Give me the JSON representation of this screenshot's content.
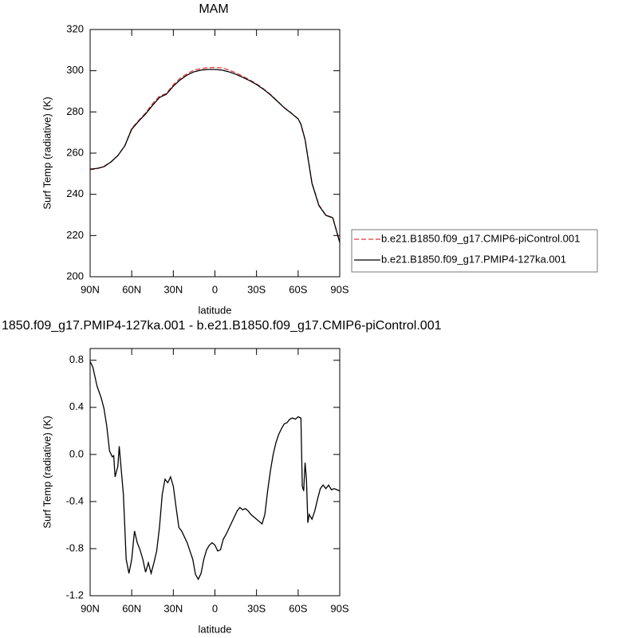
{
  "chart_data": [
    {
      "type": "line",
      "title": "MAM",
      "xlabel": "latitude",
      "ylabel": "Surf Temp (radiative) (K)",
      "x": [
        90,
        85,
        80,
        75,
        70,
        65,
        60,
        55,
        50,
        45,
        40,
        35,
        30,
        25,
        20,
        15,
        10,
        5,
        0,
        -5,
        -10,
        -15,
        -20,
        -25,
        -30,
        -35,
        -40,
        -45,
        -50,
        -55,
        -60,
        -62,
        -65,
        -70,
        -75,
        -80,
        -85,
        -90
      ],
      "series": [
        {
          "name": "b.e21.B1850.f09_g17.CMIP6-piControl.001",
          "color": "#e8383a",
          "dash": "dashed",
          "values": [
            252.0,
            252.4,
            253.6,
            255.7,
            258.8,
            263.6,
            272.0,
            275.8,
            279.5,
            284.0,
            287.6,
            289.0,
            293.2,
            296.4,
            298.6,
            300.3,
            301.0,
            301.5,
            301.6,
            301.3,
            300.4,
            299.0,
            297.3,
            295.6,
            293.6,
            291.2,
            288.5,
            285.3,
            282.1,
            279.5,
            276.7,
            274.1,
            266.6,
            245.5,
            234.8,
            229.9,
            228.7,
            216.8
          ]
        },
        {
          "name": "b.e21.B1850.f09_g17.PMIP4-127ka.001",
          "color": "#000000",
          "dash": "solid",
          "values": [
            252.2,
            252.6,
            253.4,
            255.7,
            258.8,
            263.5,
            271.6,
            275.5,
            279.0,
            283.2,
            287.0,
            288.6,
            292.5,
            295.6,
            297.9,
            299.5,
            300.3,
            300.6,
            300.6,
            300.3,
            299.5,
            298.3,
            296.8,
            295.2,
            293.3,
            291.0,
            288.3,
            285.2,
            282.0,
            279.4,
            276.6,
            274.0,
            266.6,
            245.3,
            234.5,
            229.8,
            228.6,
            216.6
          ]
        }
      ],
      "xlim": [
        90,
        -90
      ],
      "ylim": [
        200,
        320
      ],
      "xticks": [
        {
          "value": 90,
          "label": "90N"
        },
        {
          "value": 60,
          "label": "60N"
        },
        {
          "value": 30,
          "label": "30N"
        },
        0,
        {
          "value": -30,
          "label": "30S"
        },
        {
          "value": -60,
          "label": "60S"
        },
        {
          "value": -90,
          "label": "90S"
        }
      ],
      "yticks": [
        200,
        220,
        240,
        260,
        280,
        300,
        320
      ],
      "legend": "right"
    },
    {
      "type": "line",
      "title": "1850.f09_g17.PMIP4-127ka.001 - b.e21.B1850.f09_g17.CMIP6-piControl.001",
      "xlabel": "latitude",
      "ylabel": "Surf Temp (radiative) (K)",
      "x": [
        90,
        88,
        85,
        82,
        80,
        78,
        76,
        74,
        73,
        72,
        70,
        69,
        68,
        66,
        64,
        62,
        60,
        58,
        56,
        54,
        52,
        50,
        48,
        46,
        44,
        42,
        40,
        38,
        36,
        34,
        32,
        30,
        28,
        26,
        24,
        22,
        20,
        18,
        16,
        14,
        12,
        10,
        8,
        6,
        4,
        2,
        0,
        -2,
        -4,
        -6,
        -8,
        -10,
        -12,
        -14,
        -16,
        -18,
        -20,
        -22,
        -24,
        -26,
        -28,
        -30,
        -32,
        -34,
        -36,
        -38,
        -40,
        -42,
        -44,
        -46,
        -48,
        -50,
        -52,
        -54,
        -56,
        -58,
        -60,
        -62,
        -63,
        -64,
        -65,
        -66,
        -67,
        -68,
        -70,
        -72,
        -74,
        -76,
        -78,
        -80,
        -82,
        -84,
        -86,
        -88,
        -90
      ],
      "series": [
        {
          "color": "#000000",
          "dash": "solid",
          "values": [
            0.79,
            0.74,
            0.58,
            0.48,
            0.39,
            0.24,
            0.03,
            -0.02,
            -0.01,
            -0.19,
            -0.1,
            0.07,
            -0.07,
            -0.34,
            -0.89,
            -1.01,
            -0.89,
            -0.65,
            -0.75,
            -0.81,
            -0.89,
            -1.0,
            -0.92,
            -1.01,
            -0.92,
            -0.82,
            -0.62,
            -0.34,
            -0.21,
            -0.24,
            -0.19,
            -0.27,
            -0.45,
            -0.62,
            -0.65,
            -0.7,
            -0.75,
            -0.82,
            -0.89,
            -1.02,
            -1.06,
            -1.01,
            -0.89,
            -0.81,
            -0.77,
            -0.75,
            -0.77,
            -0.82,
            -0.81,
            -0.72,
            -0.68,
            -0.63,
            -0.58,
            -0.53,
            -0.48,
            -0.45,
            -0.47,
            -0.46,
            -0.48,
            -0.51,
            -0.53,
            -0.55,
            -0.57,
            -0.59,
            -0.51,
            -0.31,
            -0.14,
            0.0,
            0.1,
            0.17,
            0.22,
            0.26,
            0.27,
            0.3,
            0.31,
            0.3,
            0.32,
            0.31,
            -0.27,
            -0.31,
            -0.07,
            -0.21,
            -0.58,
            -0.51,
            -0.55,
            -0.48,
            -0.38,
            -0.29,
            -0.26,
            -0.29,
            -0.26,
            -0.3,
            -0.29,
            -0.3,
            -0.31
          ]
        }
      ],
      "xlim": [
        90,
        -90
      ],
      "ylim": [
        -1.2,
        0.9
      ],
      "xticks": [
        {
          "value": 90,
          "label": "90N"
        },
        {
          "value": 60,
          "label": "60N"
        },
        {
          "value": 30,
          "label": "30N"
        },
        0,
        {
          "value": -30,
          "label": "30S"
        },
        {
          "value": -60,
          "label": "60S"
        },
        {
          "value": -90,
          "label": "90S"
        }
      ],
      "yticks": [
        -1.2,
        -0.8,
        -0.4,
        {
          "value": 0,
          "label": "0.0"
        },
        0.4,
        0.8
      ]
    }
  ]
}
